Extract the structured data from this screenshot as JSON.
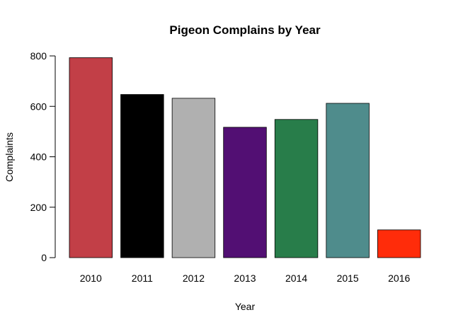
{
  "chart_data": {
    "type": "bar",
    "title": "Pigeon Complains by Year",
    "xlabel": "Year",
    "ylabel": "Complaints",
    "categories": [
      "2010",
      "2011",
      "2012",
      "2013",
      "2014",
      "2015",
      "2016"
    ],
    "values": [
      793,
      647,
      632,
      517,
      548,
      612,
      110
    ],
    "colors": [
      "#C23F47",
      "#000000",
      "#B0B0B0",
      "#520F73",
      "#287D4A",
      "#4F8C8C",
      "#FF2C0A"
    ],
    "ylim": [
      0,
      800
    ],
    "yticks": [
      "0",
      "200",
      "400",
      "600",
      "800"
    ],
    "grid": false,
    "legend": "none"
  }
}
